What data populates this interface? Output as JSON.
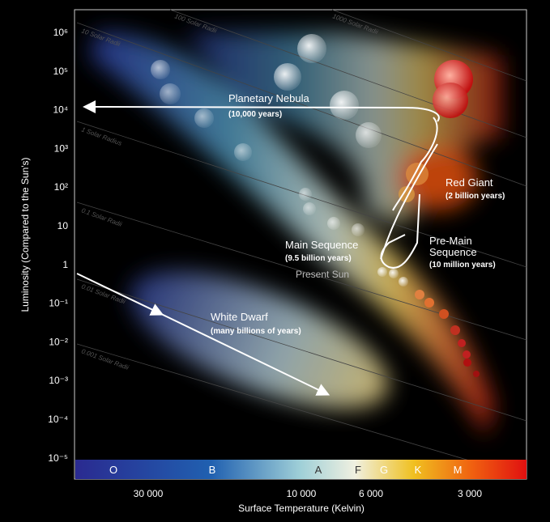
{
  "title_y": "Luminosity (Compared to the Sun's)",
  "title_x": "Surface Temperature (Kelvin)",
  "y_ticks": [
    "10⁶",
    "10⁵",
    "10⁴",
    "10³",
    "10²",
    "10",
    "1",
    "10⁻¹",
    "10⁻²",
    "10⁻³",
    "10⁻⁴",
    "10⁻⁵"
  ],
  "x_ticks": [
    "30 000",
    "10 000",
    "6 000",
    "3 000"
  ],
  "spectral_classes": [
    "O",
    "B",
    "A",
    "F",
    "G",
    "K",
    "M"
  ],
  "radius_lines": [
    "1000 Solar Radii",
    "100 Solar Radii",
    "10 Solar Radii",
    "1 Solar Radius",
    "0.1 Solar Radii",
    "0.01 Solar Radii",
    "0.001 Solar Radii"
  ],
  "annotations": {
    "planetary_nebula": "Planetary Nebula",
    "planetary_nebula_time": "(10,000 years)",
    "red_giant": "Red Giant",
    "red_giant_time": "(2 billion years)",
    "main_sequence": "Main Sequence",
    "main_sequence_time": "(9.5 billion years)",
    "pre_main_1": "Pre-Main",
    "pre_main_2": "Sequence",
    "pre_main_time": "(10 million years)",
    "present_sun": "Present Sun",
    "white_dwarf": "White Dwarf",
    "white_dwarf_time": "(many billions of years)"
  }
}
